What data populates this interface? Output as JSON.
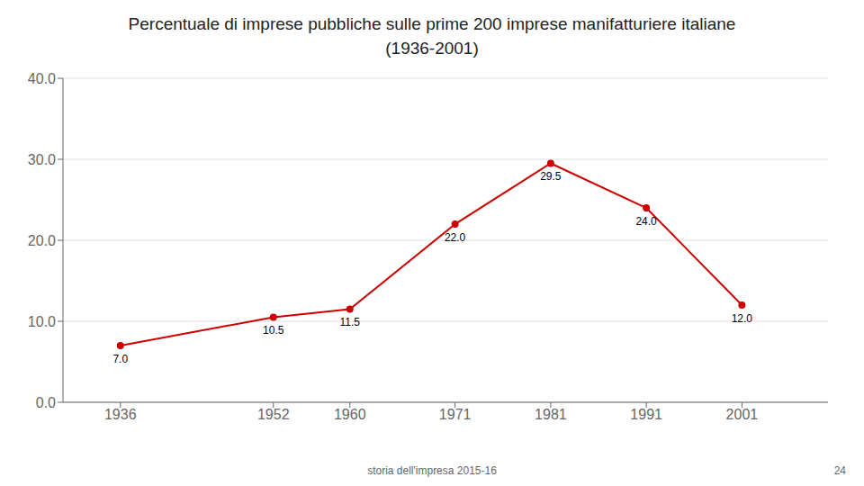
{
  "chart_data": {
    "type": "line",
    "title": "Percentuale di imprese pubbliche sulle prime 200 imprese manifatturiere italiane",
    "subtitle": "(1936-2001)",
    "x": [
      1936,
      1952,
      1960,
      1971,
      1981,
      1991,
      2001
    ],
    "values": [
      7.0,
      10.5,
      11.5,
      22.0,
      29.5,
      24.0,
      12.0
    ],
    "value_labels": [
      "7.0",
      "10.5",
      "11.5",
      "22.0",
      "29.5",
      "24.0",
      "12.0"
    ],
    "data_labels": true,
    "color": "#cc0000",
    "marker": "circle",
    "line_style": "solid",
    "xlim": [
      1930,
      2010
    ],
    "xticks": [
      1936,
      1952,
      1960,
      1971,
      1981,
      1991,
      2001
    ],
    "ylim": [
      0,
      40
    ],
    "yticks": [
      {
        "value": 0,
        "label": "0.0"
      },
      {
        "value": 10,
        "label": "10.0"
      },
      {
        "value": 20,
        "label": "20.0"
      },
      {
        "value": 30,
        "label": "30.0"
      },
      {
        "value": 40,
        "label": "40.0"
      }
    ],
    "grid": "y",
    "annotations": [
      "storia dell'impresa 2015-16",
      "24"
    ]
  }
}
